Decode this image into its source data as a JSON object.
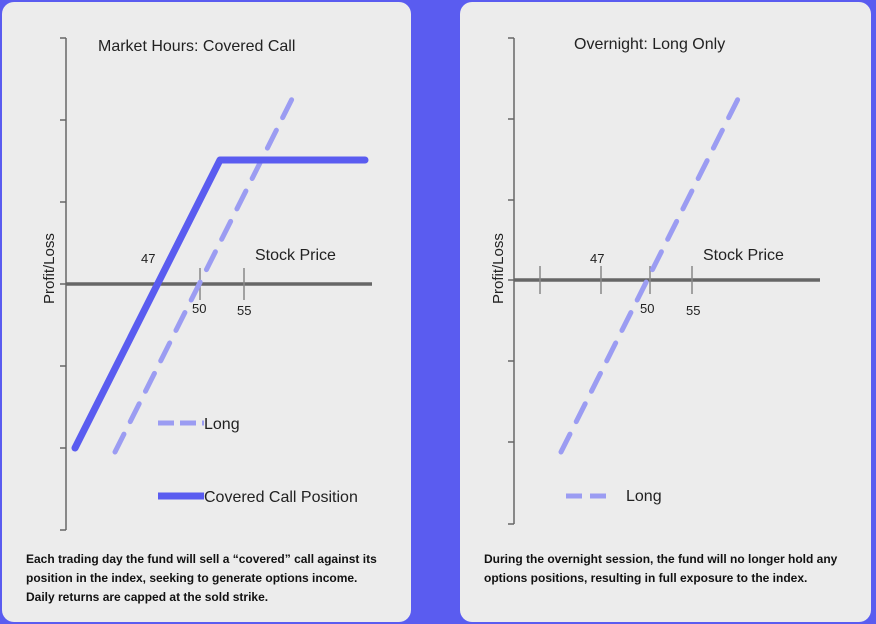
{
  "panels": [
    {
      "title": "Market Hours: Covered Call",
      "ylabel": "Profit/Loss",
      "xlabel": "Stock Price",
      "tick_labels": [
        "47",
        "50",
        "55"
      ],
      "legend": [
        {
          "label": "Long",
          "style": "dashed",
          "color": "#9b9cf2"
        },
        {
          "label": "Covered Call Position",
          "style": "solid",
          "color": "#5a5cf0"
        }
      ],
      "caption": "Each trading day the fund will sell a “covered” call against its position in the index, seeking to generate options income. Daily returns are capped at the sold strike."
    },
    {
      "title": "Overnight: Long Only",
      "ylabel": "Profit/Loss",
      "xlabel": "Stock Price",
      "tick_labels": [
        "47",
        "50",
        "55"
      ],
      "legend": [
        {
          "label": "Long",
          "style": "dashed",
          "color": "#9b9cf2"
        }
      ],
      "caption": "During the overnight session, the fund will no longer hold any options positions, resulting in full exposure to the index."
    }
  ],
  "colors": {
    "accent": "#5a5cf0",
    "long_dashed": "#9b9cf2",
    "axis": "#666666",
    "panel_bg": "#ececec"
  }
}
